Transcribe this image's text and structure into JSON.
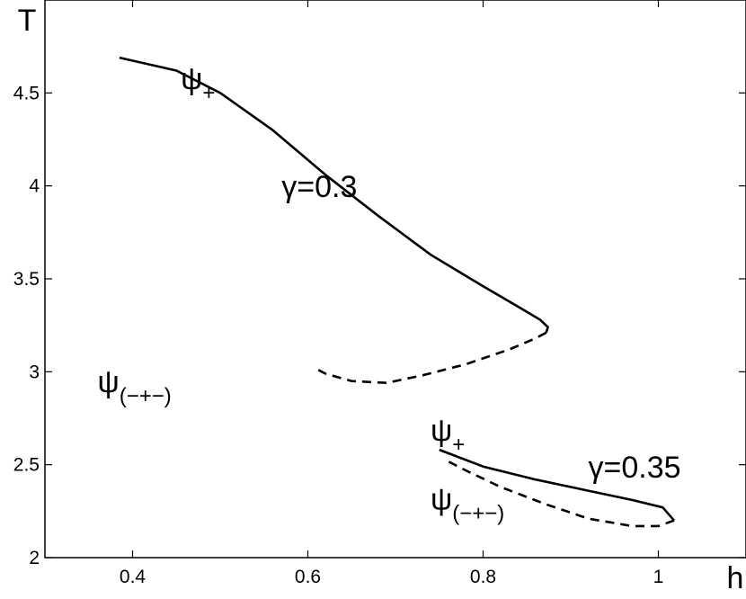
{
  "chart_data": {
    "type": "line",
    "title": "",
    "xlabel": "h",
    "ylabel": "T",
    "xlim": [
      0.3,
      1.1
    ],
    "ylim": [
      2,
      5
    ],
    "xticks": [
      "0.4",
      "0.6",
      "0.8",
      "1"
    ],
    "xtick_values": [
      0.4,
      0.6,
      0.8,
      1.0
    ],
    "yticks": [
      "2",
      "2.5",
      "3",
      "3.5",
      "4",
      "4.5"
    ],
    "ytick_values": [
      2,
      2.5,
      3,
      3.5,
      4,
      4.5
    ],
    "grid": false,
    "legend": "none",
    "series": [
      {
        "style": "solid",
        "x": [
          0.385,
          0.45,
          0.5,
          0.56,
          0.62,
          0.68,
          0.74,
          0.8,
          0.84,
          0.865,
          0.874,
          0.872
        ],
        "y": [
          4.69,
          4.62,
          4.5,
          4.3,
          4.06,
          3.84,
          3.63,
          3.46,
          3.35,
          3.28,
          3.24,
          3.21
        ]
      },
      {
        "style": "dashed",
        "x": [
          0.872,
          0.86,
          0.83,
          0.78,
          0.73,
          0.69,
          0.65,
          0.62,
          0.612
        ],
        "y": [
          3.21,
          3.18,
          3.12,
          3.04,
          2.98,
          2.94,
          2.95,
          2.99,
          3.01
        ]
      },
      {
        "style": "solid",
        "x": [
          0.75,
          0.8,
          0.86,
          0.92,
          0.97,
          1.005,
          1.018
        ],
        "y": [
          2.58,
          2.49,
          2.42,
          2.36,
          2.31,
          2.27,
          2.2
        ]
      },
      {
        "style": "dashed",
        "x": [
          1.018,
          1.0,
          0.97,
          0.92,
          0.87,
          0.82,
          0.78,
          0.755
        ],
        "y": [
          2.2,
          2.17,
          2.17,
          2.21,
          2.29,
          2.38,
          2.47,
          2.53
        ]
      }
    ],
    "annotations": [
      {
        "x": 0.455,
        "y": 4.52,
        "main": "ψ",
        "sub": "+",
        "anchor": "start"
      },
      {
        "x": 0.57,
        "y": 3.94,
        "main": "γ=0.3",
        "sub": "",
        "anchor": "start"
      },
      {
        "x": 0.36,
        "y": 2.89,
        "main": "ψ",
        "sub": "(−+−)",
        "anchor": "start"
      },
      {
        "x": 0.74,
        "y": 2.63,
        "main": "ψ",
        "sub": "+",
        "anchor": "start"
      },
      {
        "x": 0.92,
        "y": 2.43,
        "main": "γ=0.35",
        "sub": "",
        "anchor": "start"
      },
      {
        "x": 0.74,
        "y": 2.26,
        "main": "ψ",
        "sub": "(−+−)",
        "anchor": "start"
      }
    ]
  }
}
